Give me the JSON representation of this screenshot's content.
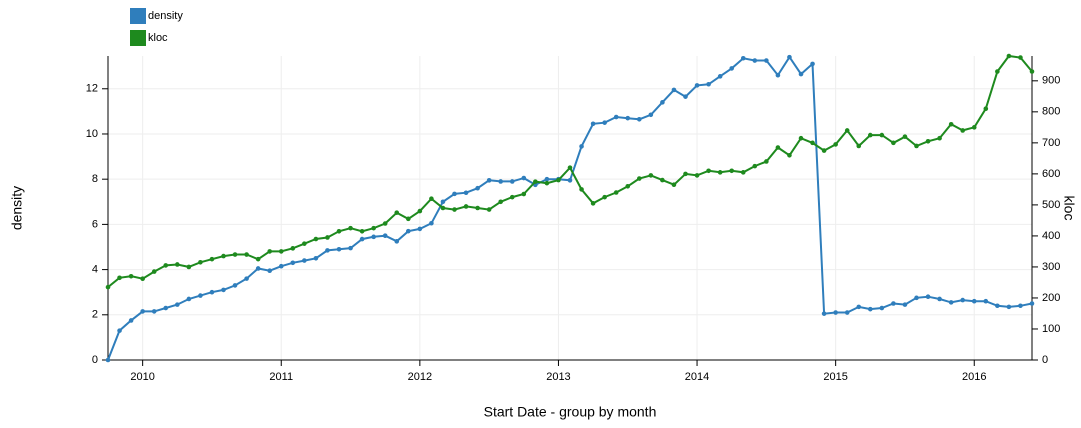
{
  "chart_data": {
    "type": "line",
    "x_label": "Start Date - group by month",
    "y_label": "density",
    "y2_label": "kloc",
    "x": [
      "2009-10",
      "2009-11",
      "2009-12",
      "2010-01",
      "2010-02",
      "2010-03",
      "2010-04",
      "2010-05",
      "2010-06",
      "2010-07",
      "2010-08",
      "2010-09",
      "2010-10",
      "2010-11",
      "2010-12",
      "2011-01",
      "2011-02",
      "2011-03",
      "2011-04",
      "2011-05",
      "2011-06",
      "2011-07",
      "2011-08",
      "2011-09",
      "2011-10",
      "2011-11",
      "2011-12",
      "2012-01",
      "2012-02",
      "2012-03",
      "2012-04",
      "2012-05",
      "2012-06",
      "2012-07",
      "2012-08",
      "2012-09",
      "2012-10",
      "2012-11",
      "2012-12",
      "2013-01",
      "2013-02",
      "2013-03",
      "2013-04",
      "2013-05",
      "2013-06",
      "2013-07",
      "2013-08",
      "2013-09",
      "2013-10",
      "2013-11",
      "2013-12",
      "2014-01",
      "2014-02",
      "2014-03",
      "2014-04",
      "2014-05",
      "2014-06",
      "2014-07",
      "2014-08",
      "2014-09",
      "2014-10",
      "2014-11",
      "2014-12",
      "2015-01",
      "2015-02",
      "2015-03",
      "2015-04",
      "2015-05",
      "2015-06",
      "2015-07",
      "2015-08",
      "2015-09",
      "2015-10",
      "2015-11",
      "2015-12",
      "2016-01",
      "2016-02",
      "2016-03",
      "2016-04",
      "2016-05",
      "2016-06"
    ],
    "series": [
      {
        "name": "density",
        "color": "#2f7ebc",
        "values": [
          0,
          1.3,
          1.75,
          2.15,
          2.15,
          2.3,
          2.45,
          2.7,
          2.85,
          3.0,
          3.1,
          3.3,
          3.6,
          4.05,
          3.95,
          4.15,
          4.3,
          4.4,
          4.5,
          4.85,
          4.9,
          4.95,
          5.35,
          5.45,
          5.5,
          5.25,
          5.7,
          5.8,
          6.05,
          7.0,
          7.35,
          7.4,
          7.6,
          7.95,
          7.9,
          7.9,
          8.05,
          7.75,
          8.0,
          8.0,
          7.95,
          9.45,
          10.45,
          10.5,
          10.75,
          10.7,
          10.65,
          10.85,
          11.4,
          11.95,
          11.65,
          12.15,
          12.2,
          12.55,
          12.9,
          13.35,
          13.25,
          13.25,
          12.6,
          13.4,
          12.65,
          13.1,
          2.05,
          2.1,
          2.1,
          2.35,
          2.25,
          2.3,
          2.5,
          2.45,
          2.75,
          2.8,
          2.7,
          2.55,
          2.65,
          2.6,
          2.6,
          2.4,
          2.35,
          2.4,
          2.5
        ]
      },
      {
        "name": "kloc",
        "color": "#1e8a1e",
        "axis": "y2",
        "values": [
          235,
          265,
          270,
          262,
          285,
          305,
          308,
          300,
          315,
          325,
          335,
          340,
          340,
          325,
          350,
          350,
          360,
          375,
          390,
          395,
          415,
          425,
          415,
          425,
          440,
          475,
          455,
          480,
          520,
          490,
          485,
          495,
          490,
          485,
          510,
          525,
          535,
          575,
          570,
          580,
          620,
          550,
          505,
          525,
          540,
          560,
          585,
          595,
          580,
          565,
          600,
          595,
          610,
          605,
          610,
          605,
          625,
          640,
          685,
          660,
          715,
          700,
          675,
          695,
          740,
          690,
          725,
          725,
          700,
          720,
          690,
          705,
          715,
          760,
          740,
          750,
          810,
          930,
          980,
          975,
          930
        ]
      }
    ],
    "xlim": [
      "2009-10",
      "2016-06"
    ],
    "xticks": [
      "2010",
      "2011",
      "2012",
      "2013",
      "2014",
      "2015",
      "2016"
    ],
    "ylim": [
      0,
      13.45
    ],
    "yticks": [
      0,
      2,
      4,
      6,
      8,
      10,
      12
    ],
    "y2lim": [
      0,
      980
    ],
    "y2ticks": [
      0,
      100,
      200,
      300,
      400,
      500,
      600,
      700,
      800,
      900
    ],
    "grid": true,
    "legend": "top-left"
  }
}
